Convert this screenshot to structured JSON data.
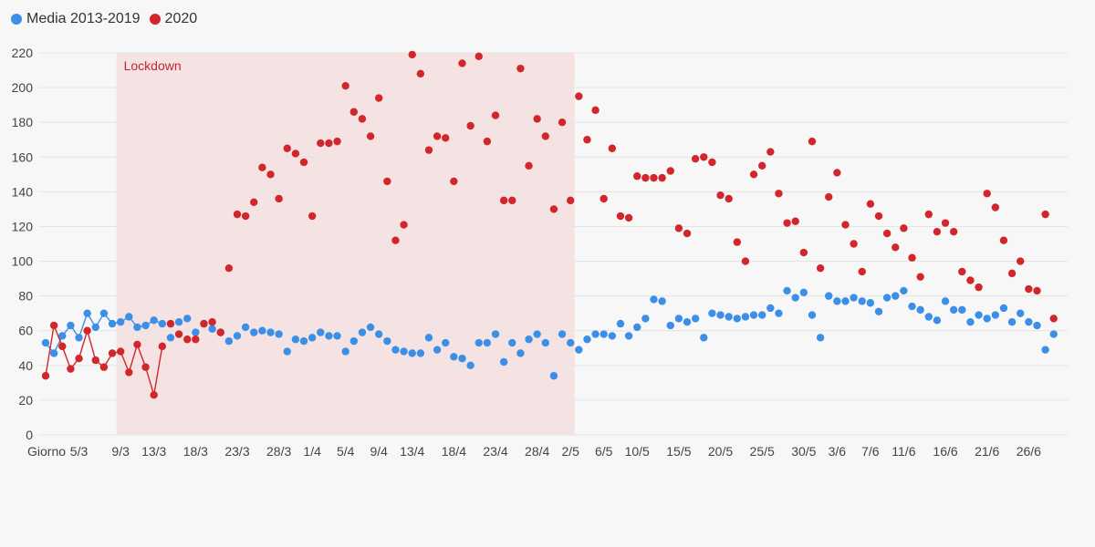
{
  "legend": [
    {
      "label": "Media 2013-2019",
      "color": "#3b8fe6"
    },
    {
      "label": "2020",
      "color": "#d1262b"
    }
  ],
  "colors": {
    "band": "#f5e3e3",
    "grid": "#e4e4e4",
    "axis_text": "#444444",
    "annotation": "#c0262b"
  },
  "chart_data": {
    "type": "scatter",
    "title": "",
    "xlabel": "",
    "ylabel": "",
    "ylim": [
      0,
      220
    ],
    "yticks": [
      0,
      20,
      40,
      60,
      80,
      100,
      120,
      140,
      160,
      180,
      200,
      220
    ],
    "x_first_label": "Giorno",
    "x_tick_labels": [
      {
        "i": 4,
        "label": "5/3"
      },
      {
        "i": 9,
        "label": "9/3"
      },
      {
        "i": 13,
        "label": "13/3"
      },
      {
        "i": 18,
        "label": "18/3"
      },
      {
        "i": 23,
        "label": "23/3"
      },
      {
        "i": 28,
        "label": "28/3"
      },
      {
        "i": 32,
        "label": "1/4"
      },
      {
        "i": 36,
        "label": "5/4"
      },
      {
        "i": 40,
        "label": "9/4"
      },
      {
        "i": 44,
        "label": "13/4"
      },
      {
        "i": 49,
        "label": "18/4"
      },
      {
        "i": 54,
        "label": "23/4"
      },
      {
        "i": 59,
        "label": "28/4"
      },
      {
        "i": 63,
        "label": "2/5"
      },
      {
        "i": 67,
        "label": "6/5"
      },
      {
        "i": 71,
        "label": "10/5"
      },
      {
        "i": 76,
        "label": "15/5"
      },
      {
        "i": 81,
        "label": "20/5"
      },
      {
        "i": 86,
        "label": "25/5"
      },
      {
        "i": 91,
        "label": "30/5"
      },
      {
        "i": 95,
        "label": "3/6"
      },
      {
        "i": 99,
        "label": "7/6"
      },
      {
        "i": 103,
        "label": "11/6"
      },
      {
        "i": 108,
        "label": "16/6"
      },
      {
        "i": 113,
        "label": "21/6"
      },
      {
        "i": 118,
        "label": "26/6"
      }
    ],
    "band": {
      "start": 9,
      "end": 64,
      "label": "Lockdown"
    },
    "line_until": 14,
    "series": [
      {
        "name": "Media 2013-2019",
        "color": "#3b8fe6",
        "values": [
          53,
          47,
          57,
          63,
          56,
          70,
          62,
          70,
          64,
          65,
          68,
          62,
          63,
          66,
          64,
          56,
          65,
          67,
          59,
          64,
          61,
          59,
          54,
          57,
          62,
          59,
          60,
          59,
          58,
          48,
          55,
          54,
          56,
          59,
          57,
          57,
          48,
          54,
          59,
          62,
          58,
          54,
          49,
          48,
          47,
          47,
          56,
          49,
          53,
          45,
          44,
          40,
          53,
          53,
          58,
          42,
          53,
          47,
          55,
          58,
          53,
          34,
          58,
          53,
          49,
          55,
          58,
          58,
          57,
          64,
          57,
          62,
          67,
          78,
          77,
          63,
          67,
          65,
          67,
          56,
          70,
          69,
          68,
          67,
          68,
          69,
          69,
          73,
          70,
          83,
          79,
          82,
          69,
          56,
          80,
          77,
          77,
          79,
          77,
          76,
          71,
          79,
          80,
          83,
          74,
          72,
          68,
          66,
          77,
          72,
          72,
          65,
          69,
          67,
          69,
          73,
          65,
          70,
          65,
          63,
          49,
          58
        ]
      },
      {
        "name": "2020",
        "color": "#d1262b",
        "values": [
          34,
          63,
          51,
          38,
          44,
          60,
          43,
          39,
          47,
          48,
          36,
          52,
          39,
          23,
          51,
          64,
          58,
          55,
          55,
          64,
          65,
          59,
          96,
          127,
          126,
          134,
          154,
          150,
          136,
          165,
          162,
          157,
          126,
          168,
          168,
          169,
          201,
          186,
          182,
          172,
          194,
          146,
          112,
          121,
          219,
          208,
          164,
          172,
          171,
          146,
          214,
          178,
          218,
          169,
          184,
          135,
          135,
          211,
          155,
          182,
          172,
          130,
          180,
          135,
          195,
          170,
          187,
          136,
          165,
          126,
          125,
          149,
          148,
          148,
          148,
          152,
          119,
          116,
          159,
          160,
          157,
          138,
          136,
          111,
          100,
          150,
          155,
          163,
          139,
          122,
          123,
          105,
          169,
          96,
          137,
          151,
          121,
          110,
          94,
          133,
          126,
          116,
          108,
          119,
          102,
          91,
          127,
          117,
          122,
          117,
          94,
          89,
          85,
          139,
          131,
          112,
          93,
          100,
          84,
          83,
          127,
          67
        ]
      }
    ]
  }
}
